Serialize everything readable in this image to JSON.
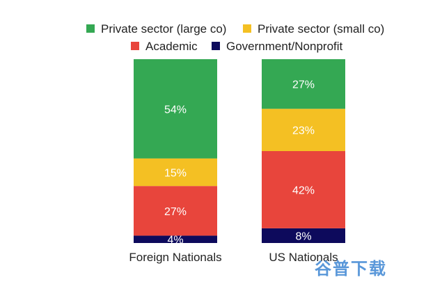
{
  "watermark": "谷普下载",
  "chart_data": {
    "type": "bar",
    "stacked": true,
    "percent": true,
    "categories": [
      "Foreign Nationals",
      "US Nationals"
    ],
    "series": [
      {
        "name": "Government/Nonprofit",
        "color": "#0d0a5c",
        "values": [
          4,
          8
        ]
      },
      {
        "name": "Academic",
        "color": "#e8453c",
        "values": [
          27,
          42
        ]
      },
      {
        "name": "Private sector (small co)",
        "color": "#f4c023",
        "values": [
          15,
          23
        ]
      },
      {
        "name": "Private sector (large co)",
        "color": "#34a853",
        "values": [
          54,
          27
        ]
      }
    ],
    "legend_order": [
      "Private sector (large co)",
      "Private sector (small co)",
      "Academic",
      "Government/Nonprofit"
    ],
    "legend_position": "top",
    "title": "",
    "xlabel": "",
    "ylabel": "",
    "grid": false
  }
}
